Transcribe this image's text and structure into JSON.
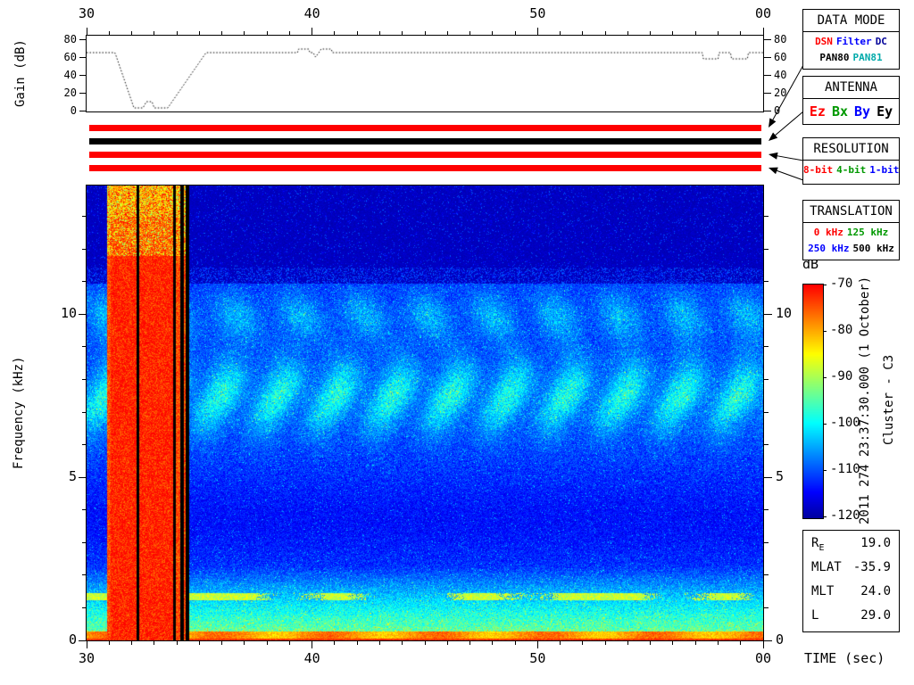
{
  "title_texts": {
    "gain_ylabel": "Gain (dB)",
    "freq_ylabel": "Frequency (kHz)",
    "time_xlabel": "TIME (sec)",
    "colorbar_label": "dB",
    "timestamp": "2011 274 23:37:30.000 (1 October)",
    "spacecraft": "Cluster - C3"
  },
  "axes": {
    "time": {
      "values": [
        30,
        40,
        50,
        60
      ],
      "labels": [
        "30",
        "40",
        "50",
        "00"
      ],
      "minor_step_sec": 1
    },
    "gain_db": {
      "ticks": [
        0,
        20,
        40,
        60,
        80
      ]
    },
    "freq_khz": {
      "major": [
        0,
        5,
        10
      ],
      "minor_step": 1,
      "max": 13.95
    }
  },
  "status_bars": [
    {
      "color": "#ff0000",
      "legend": "data-mode"
    },
    {
      "color": "#000000",
      "legend": "antenna"
    },
    {
      "color": "#ff0000",
      "legend": "resolution"
    },
    {
      "color": "#ff0000",
      "legend": "translation"
    }
  ],
  "panels": [
    {
      "id": "data-mode",
      "title": "DATA MODE",
      "lines": [
        [
          {
            "text": "DSN",
            "color": "#ff0000"
          },
          {
            "text": "Filter",
            "color": "#0000ff"
          },
          {
            "text": "DC",
            "color": "#000099"
          }
        ],
        [
          {
            "text": "PAN80",
            "color": "#000000"
          },
          {
            "text": "PAN81",
            "color": "#00aaaa"
          }
        ]
      ]
    },
    {
      "id": "antenna",
      "title": "ANTENNA",
      "lines": [
        [
          {
            "text": "Ez",
            "color": "#ff0000"
          },
          {
            "text": "Bx",
            "color": "#009900"
          },
          {
            "text": "By",
            "color": "#0000ff"
          },
          {
            "text": "Ey",
            "color": "#000000"
          }
        ]
      ]
    },
    {
      "id": "resolution",
      "title": "RESOLUTION",
      "lines": [
        [
          {
            "text": "8-bit",
            "color": "#ff0000"
          },
          {
            "text": "4-bit",
            "color": "#009900"
          },
          {
            "text": "1-bit",
            "color": "#0000ff"
          }
        ]
      ]
    },
    {
      "id": "translation",
      "title": "TRANSLATION",
      "lines": [
        [
          {
            "text": "0 kHz",
            "color": "#ff0000"
          },
          {
            "text": "125 kHz",
            "color": "#009900"
          }
        ],
        [
          {
            "text": "250 kHz",
            "color": "#0000ff"
          },
          {
            "text": "500 kHz",
            "color": "#000000"
          }
        ]
      ]
    }
  ],
  "ephemeris": {
    "rows": [
      {
        "label": "R",
        "sub": "E",
        "value": "19.0"
      },
      {
        "label": "MLAT",
        "value": "-35.9"
      },
      {
        "label": "MLT",
        "value": "24.0"
      },
      {
        "label": "L",
        "value": "29.0"
      }
    ]
  },
  "chart_data": [
    {
      "type": "line",
      "title": "Receiver gain vs time",
      "ylabel": "Gain (dB)",
      "x_range_sec": [
        30,
        60
      ],
      "x_tick_labels": [
        "30",
        "40",
        "50",
        "00"
      ],
      "y_ticks": [
        0,
        20,
        40,
        60,
        80
      ],
      "y_range": [
        0,
        84
      ],
      "style": "dotted",
      "points": [
        [
          30,
          65
        ],
        [
          31.25,
          65
        ],
        [
          31.3,
          62
        ],
        [
          32.1,
          3
        ],
        [
          32.5,
          3
        ],
        [
          32.65,
          10
        ],
        [
          32.9,
          10
        ],
        [
          33.0,
          3
        ],
        [
          33.6,
          3
        ],
        [
          35.3,
          65
        ],
        [
          39.35,
          65
        ],
        [
          39.4,
          69
        ],
        [
          39.85,
          69
        ],
        [
          39.9,
          65
        ],
        [
          40.05,
          65
        ],
        [
          40.15,
          60
        ],
        [
          40.3,
          65
        ],
        [
          40.4,
          69
        ],
        [
          40.85,
          69
        ],
        [
          40.9,
          65
        ],
        [
          57.3,
          65
        ],
        [
          57.35,
          58
        ],
        [
          58.0,
          58
        ],
        [
          58.05,
          65
        ],
        [
          58.55,
          65
        ],
        [
          58.6,
          58
        ],
        [
          59.3,
          58
        ],
        [
          59.35,
          65
        ],
        [
          60,
          65
        ]
      ]
    },
    {
      "type": "heatmap",
      "title": "Wideband spectrogram",
      "xlabel": "TIME (sec)",
      "ylabel": "Frequency (kHz)",
      "x_range_sec": [
        30,
        60
      ],
      "x_tick_labels": [
        "30",
        "40",
        "50",
        "00"
      ],
      "y_range_khz": [
        0,
        13.95
      ],
      "y_major_ticks": [
        0,
        5,
        10
      ],
      "colorbar": {
        "label": "dB",
        "min_db": -120,
        "max_db": -70,
        "ticks": [
          -70,
          -80,
          -90,
          -100,
          -110,
          -120
        ],
        "palette": "jet"
      },
      "features": {
        "background_db": -112,
        "quiet_above_khz": 10.95,
        "burst": {
          "t_start": 30.88,
          "t_end": 34.54,
          "db": -70,
          "dropout_columns": [
            [
              32.2,
              32.3
            ],
            [
              33.8,
              33.92
            ],
            [
              34.12,
              34.3
            ],
            [
              34.36,
              34.54
            ]
          ]
        },
        "emission_band": {
          "f_center": 7.5,
          "f_sigma": 1.15,
          "peak_db": -92,
          "modulation_period_sec": 2.55
        },
        "upper_band": {
          "f_center": 9.95,
          "f_sigma": 0.75,
          "peak_db": -104
        },
        "dark_band": {
          "f_center": 3.7,
          "f_sigma": 1.3
        },
        "low_freq_band": {
          "f_below": 2.3,
          "peak_db": -88
        },
        "narrowband_line_khz": 1.35,
        "bottom_edge": {
          "f_below": 0.3,
          "db": -77
        }
      }
    }
  ]
}
